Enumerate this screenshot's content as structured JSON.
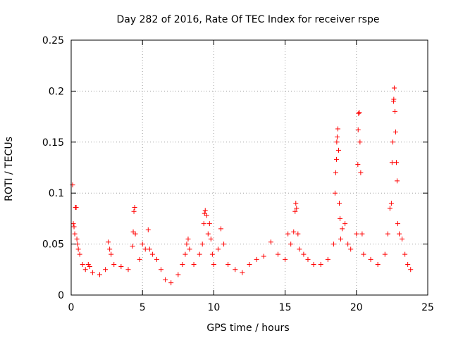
{
  "chart_data": {
    "type": "scatter",
    "title": "Day 282 of 2016, Rate Of TEC Index for receiver rspe",
    "xlabel": "GPS time / hours",
    "ylabel": "ROTI / TECUs",
    "xlim": [
      0,
      25
    ],
    "ylim": [
      0,
      0.25
    ],
    "xticks": [
      0,
      5,
      10,
      15,
      20,
      25
    ],
    "xtick_labels": [
      "0",
      "5",
      "10",
      "15",
      "20",
      "25"
    ],
    "yticks": [
      0,
      0.05,
      0.1,
      0.15,
      0.2,
      0.25
    ],
    "ytick_labels": [
      "0",
      "0.05",
      "0.1",
      "0.15",
      "0.2",
      "0.25"
    ],
    "grid": true,
    "marker": "plus",
    "color": "#ff0000",
    "series": [
      {
        "name": "ROTI",
        "points": [
          [
            0.1,
            0.108
          ],
          [
            0.15,
            0.07
          ],
          [
            0.2,
            0.067
          ],
          [
            0.25,
            0.06
          ],
          [
            0.3,
            0.086
          ],
          [
            0.35,
            0.086
          ],
          [
            0.4,
            0.055
          ],
          [
            0.45,
            0.05
          ],
          [
            0.5,
            0.045
          ],
          [
            0.6,
            0.04
          ],
          [
            0.8,
            0.03
          ],
          [
            1.0,
            0.025
          ],
          [
            1.2,
            0.03
          ],
          [
            1.3,
            0.028
          ],
          [
            1.5,
            0.022
          ],
          [
            2.0,
            0.02
          ],
          [
            2.4,
            0.025
          ],
          [
            2.6,
            0.052
          ],
          [
            2.7,
            0.045
          ],
          [
            2.8,
            0.04
          ],
          [
            3.0,
            0.03
          ],
          [
            3.5,
            0.028
          ],
          [
            4.0,
            0.025
          ],
          [
            4.3,
            0.048
          ],
          [
            4.35,
            0.062
          ],
          [
            4.4,
            0.082
          ],
          [
            4.45,
            0.086
          ],
          [
            4.5,
            0.06
          ],
          [
            4.8,
            0.035
          ],
          [
            5.0,
            0.05
          ],
          [
            5.2,
            0.045
          ],
          [
            5.4,
            0.064
          ],
          [
            5.5,
            0.045
          ],
          [
            5.7,
            0.04
          ],
          [
            6.0,
            0.035
          ],
          [
            6.3,
            0.025
          ],
          [
            6.6,
            0.015
          ],
          [
            7.0,
            0.012
          ],
          [
            7.5,
            0.02
          ],
          [
            7.8,
            0.03
          ],
          [
            8.0,
            0.04
          ],
          [
            8.1,
            0.05
          ],
          [
            8.2,
            0.055
          ],
          [
            8.3,
            0.045
          ],
          [
            8.6,
            0.03
          ],
          [
            9.0,
            0.04
          ],
          [
            9.2,
            0.05
          ],
          [
            9.3,
            0.07
          ],
          [
            9.35,
            0.08
          ],
          [
            9.4,
            0.083
          ],
          [
            9.5,
            0.078
          ],
          [
            9.6,
            0.06
          ],
          [
            9.7,
            0.07
          ],
          [
            9.8,
            0.055
          ],
          [
            9.9,
            0.04
          ],
          [
            10.0,
            0.03
          ],
          [
            10.3,
            0.045
          ],
          [
            10.5,
            0.065
          ],
          [
            10.7,
            0.05
          ],
          [
            11.0,
            0.03
          ],
          [
            11.5,
            0.025
          ],
          [
            12.0,
            0.022
          ],
          [
            12.5,
            0.03
          ],
          [
            13.0,
            0.035
          ],
          [
            13.5,
            0.038
          ],
          [
            14.0,
            0.052
          ],
          [
            14.5,
            0.04
          ],
          [
            15.0,
            0.035
          ],
          [
            15.2,
            0.06
          ],
          [
            15.4,
            0.05
          ],
          [
            15.6,
            0.062
          ],
          [
            15.7,
            0.082
          ],
          [
            15.75,
            0.09
          ],
          [
            15.8,
            0.085
          ],
          [
            15.9,
            0.06
          ],
          [
            16.0,
            0.045
          ],
          [
            16.3,
            0.04
          ],
          [
            16.6,
            0.035
          ],
          [
            17.0,
            0.03
          ],
          [
            17.5,
            0.03
          ],
          [
            18.0,
            0.035
          ],
          [
            18.4,
            0.05
          ],
          [
            18.5,
            0.1
          ],
          [
            18.55,
            0.12
          ],
          [
            18.6,
            0.133
          ],
          [
            18.62,
            0.15
          ],
          [
            18.65,
            0.155
          ],
          [
            18.7,
            0.163
          ],
          [
            18.75,
            0.142
          ],
          [
            18.8,
            0.09
          ],
          [
            18.85,
            0.075
          ],
          [
            18.9,
            0.055
          ],
          [
            19.0,
            0.065
          ],
          [
            19.2,
            0.07
          ],
          [
            19.4,
            0.05
          ],
          [
            19.6,
            0.045
          ],
          [
            20.0,
            0.06
          ],
          [
            20.1,
            0.128
          ],
          [
            20.12,
            0.162
          ],
          [
            20.15,
            0.178
          ],
          [
            20.2,
            0.179
          ],
          [
            20.25,
            0.15
          ],
          [
            20.3,
            0.12
          ],
          [
            20.4,
            0.06
          ],
          [
            20.5,
            0.04
          ],
          [
            21.0,
            0.035
          ],
          [
            21.5,
            0.03
          ],
          [
            22.0,
            0.04
          ],
          [
            22.2,
            0.06
          ],
          [
            22.35,
            0.085
          ],
          [
            22.45,
            0.09
          ],
          [
            22.5,
            0.13
          ],
          [
            22.55,
            0.15
          ],
          [
            22.6,
            0.19
          ],
          [
            22.62,
            0.192
          ],
          [
            22.65,
            0.203
          ],
          [
            22.7,
            0.18
          ],
          [
            22.75,
            0.16
          ],
          [
            22.8,
            0.13
          ],
          [
            22.85,
            0.112
          ],
          [
            22.9,
            0.07
          ],
          [
            23.0,
            0.06
          ],
          [
            23.2,
            0.055
          ],
          [
            23.4,
            0.04
          ],
          [
            23.6,
            0.03
          ],
          [
            23.8,
            0.025
          ]
        ]
      }
    ]
  }
}
